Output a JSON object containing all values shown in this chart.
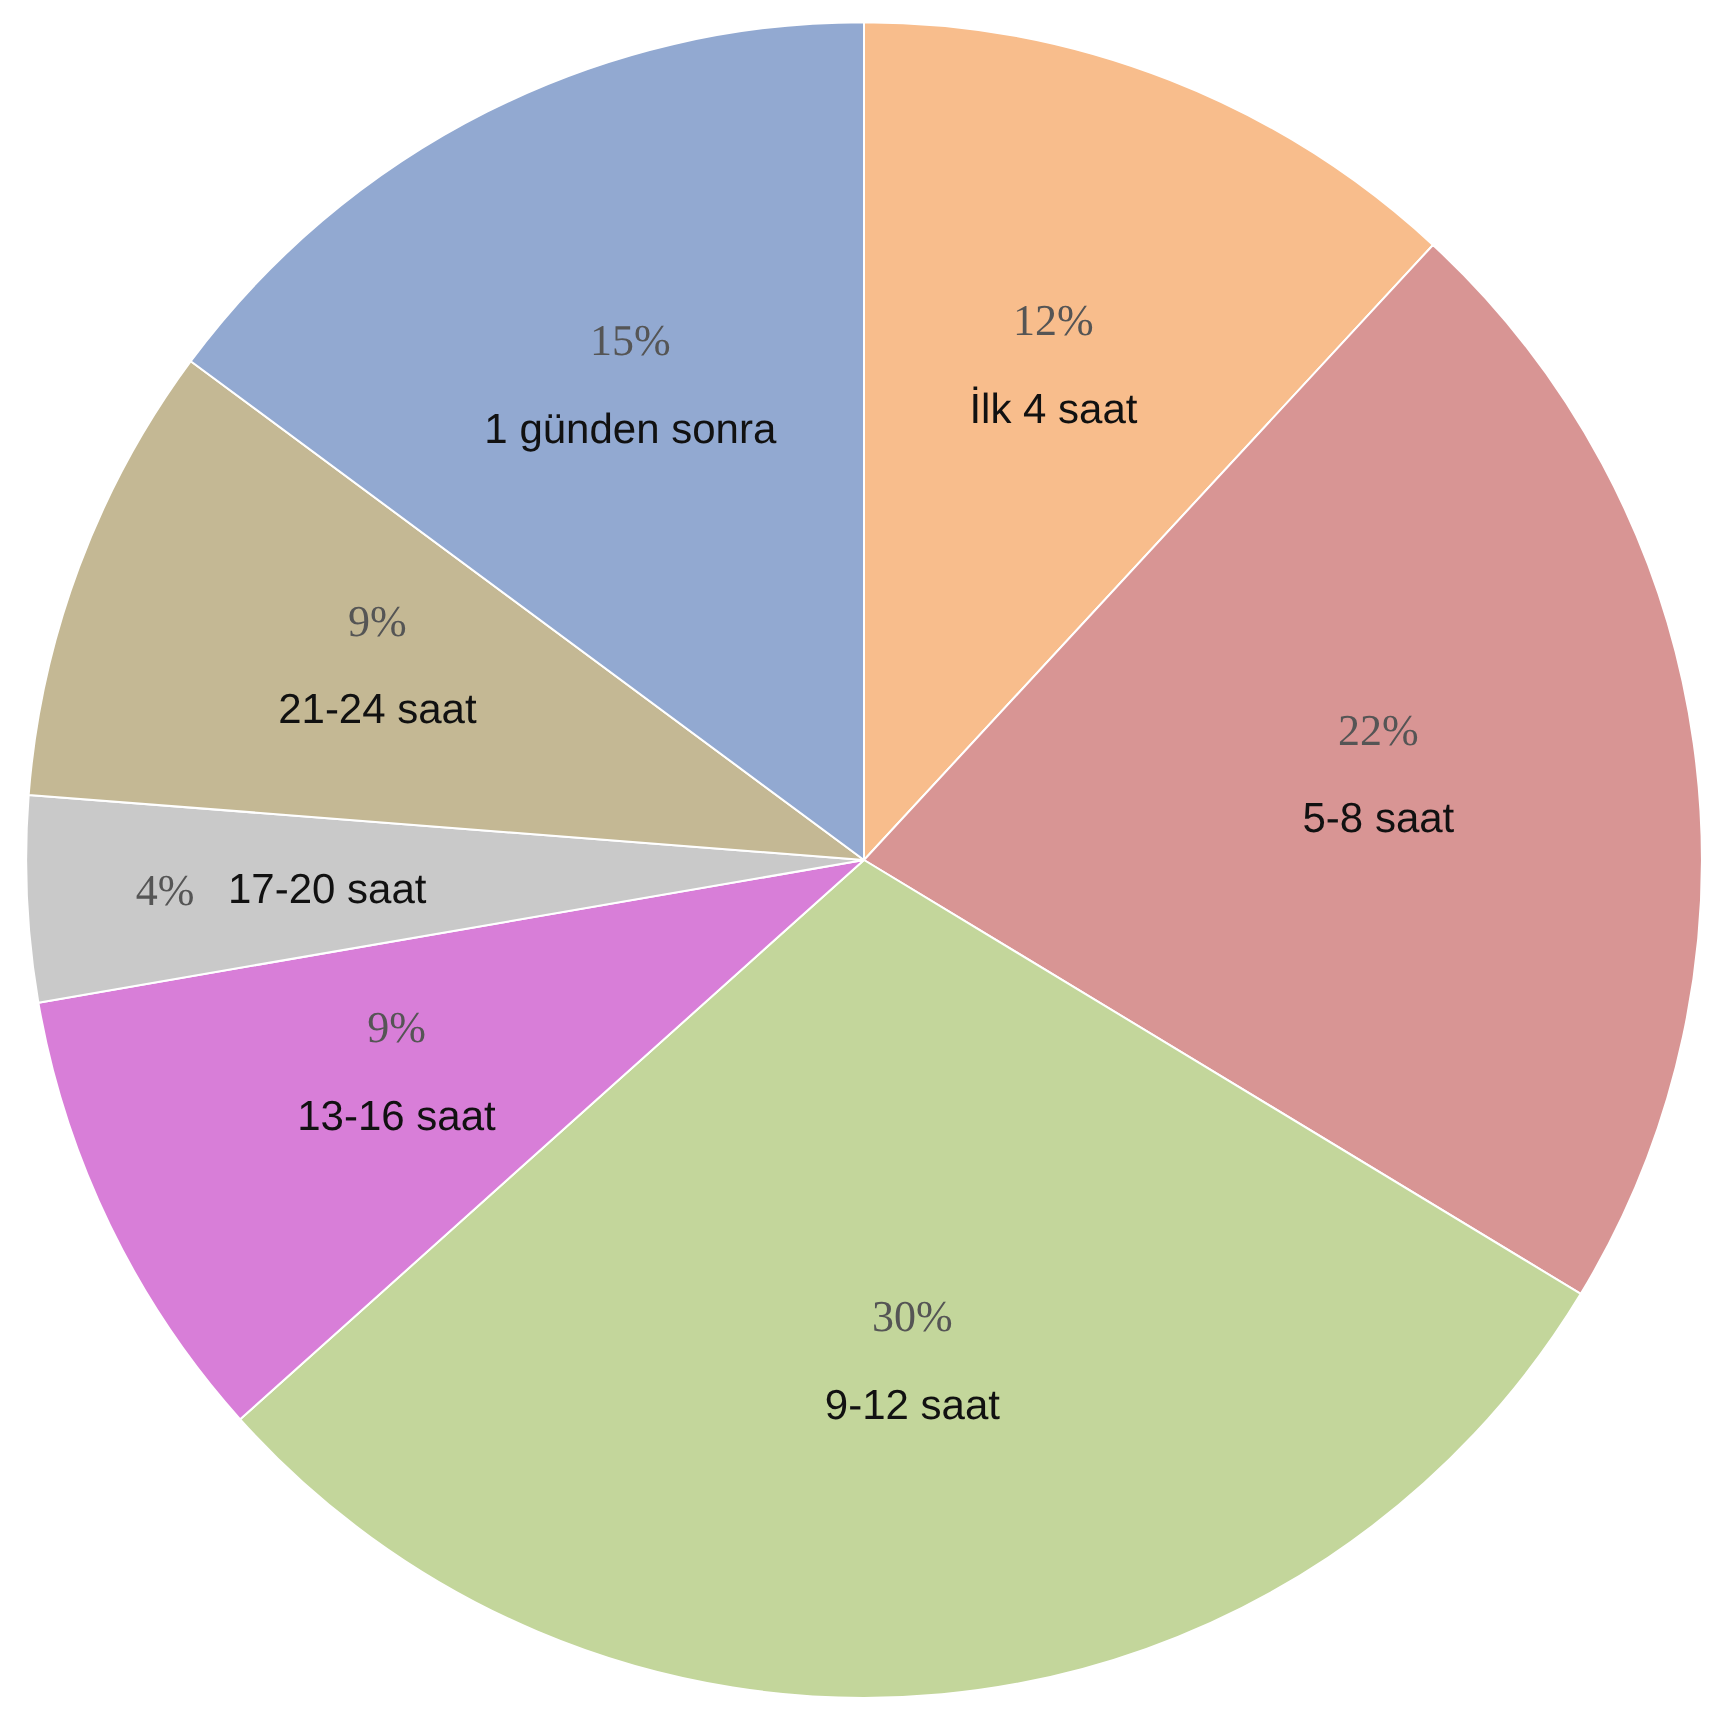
{
  "chart_data": {
    "type": "pie",
    "categories": [
      "İlk 4 saat",
      "5-8 saat",
      "9-12 saat",
      "13-16 saat",
      "17-20 saat",
      "21-24 saat",
      "1 günden sonra"
    ],
    "values": [
      12,
      22,
      30,
      9,
      4,
      9,
      15
    ],
    "value_labels": [
      "12%",
      "22%",
      "30%",
      "9%",
      "4%",
      "9%",
      "15%"
    ],
    "colors": [
      "#f8bd8c",
      "#d89594",
      "#c3d69b",
      "#d87ed8",
      "#c9c9c9",
      "#c4b894",
      "#92a9d1"
    ]
  }
}
